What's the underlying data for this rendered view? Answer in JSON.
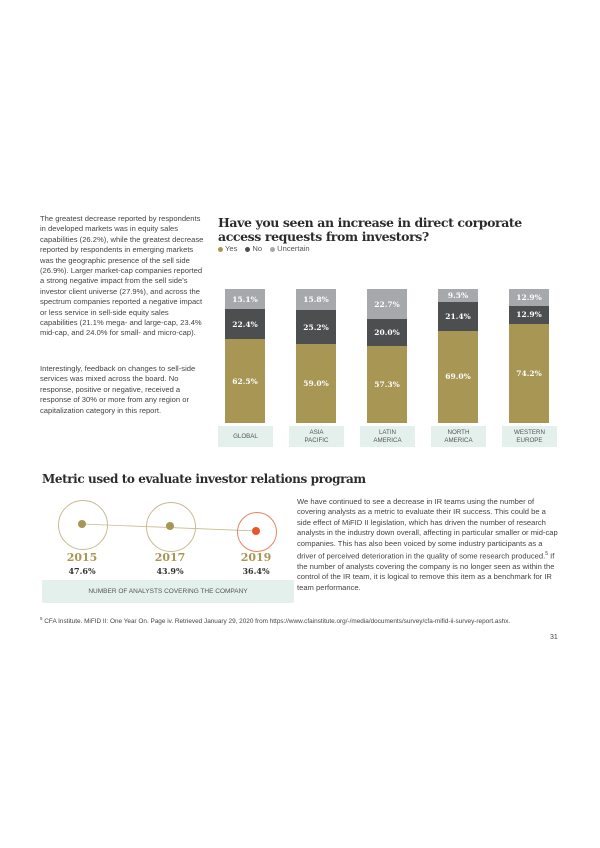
{
  "left_text": {
    "para1": "The greatest decrease reported by respondents in developed markets was in equity sales capabilities (26.2%), while the greatest decrease reported by respondents in emerging markets was the geographic presence of the sell side (26.9%). Larger market-cap companies reported a strong negative impact from the sell side's investor client universe (27.9%), and across the spectrum companies reported a negative impact or less service in sell-side equity sales capabilities (21.1% mega- and large-cap, 23.4% mid-cap, and 24.0% for small- and micro-cap).",
    "para2": "Interestingly, feedback on changes to sell-side services was mixed across the board. No response, positive or negative, received a response of 30% or more from any region or capitalization category in this report."
  },
  "chart_data": {
    "type": "bar",
    "stacked": true,
    "title": "Have you seen an increase in direct corporate access requests from investors?",
    "legend_position": "top-left",
    "categories": [
      "GLOBAL",
      "ASIA PACIFIC",
      "LATIN AMERICA",
      "NORTH AMERICA",
      "WESTERN EUROPE"
    ],
    "series": [
      {
        "name": "Yes",
        "color": "#a89654",
        "values": [
          62.5,
          59.0,
          57.3,
          69.0,
          74.2
        ],
        "labels": [
          "62.5%",
          "59.0%",
          "57.3%",
          "69.0%",
          "74.2%"
        ]
      },
      {
        "name": "No",
        "color": "#4d4e50",
        "values": [
          22.4,
          25.2,
          20.0,
          21.4,
          12.9
        ],
        "labels": [
          "22.4%",
          "25.2%",
          "20.0%",
          "21.4%",
          "12.9%"
        ]
      },
      {
        "name": "Uncertain",
        "color": "#a7a8ab",
        "values": [
          15.1,
          15.8,
          22.7,
          9.5,
          12.9
        ],
        "labels": [
          "15.1%",
          "15.8%",
          "22.7%",
          "9.5%",
          "12.9%"
        ]
      }
    ],
    "category_lines": [
      [
        "GLOBAL"
      ],
      [
        "ASIA",
        "PACIFIC"
      ],
      [
        "LATIN",
        "AMERICA"
      ],
      [
        "NORTH",
        "AMERICA"
      ],
      [
        "WESTERN",
        "EUROPE"
      ]
    ]
  },
  "metric": {
    "title": "Metric used to evaluate investor relations program",
    "points": [
      {
        "year": "2015",
        "value": "47.6%",
        "color": "#a89654"
      },
      {
        "year": "2017",
        "value": "43.9%",
        "color": "#a89654"
      },
      {
        "year": "2019",
        "value": "36.4%",
        "color": "#e8572a"
      }
    ],
    "label": "NUMBER OF ANALYSTS COVERING THE COMPANY",
    "paragraph_a": "We have continued to see a decrease in IR teams using the number of covering analysts as a metric to evaluate their IR success. This could be a side effect of MiFID II legislation, which has driven the number of research analysts in the industry down overall, affecting in particular smaller or mid-cap companies. This has also been voiced by some industry participants as a driver of perceived deterioration in the quality of some research produced.",
    "footnote_ref": "5",
    "paragraph_b": " If the number of analysts covering the company is no longer seen as within the control of the IR team, it is logical to remove this item as a benchmark for IR team performance."
  },
  "footnote": {
    "number": "5",
    "text": " CFA Institute. MiFID II: One Year On. Page iv. Retrieved January 29, 2020 from https://www.cfainstitute.org/-/media/documents/survey/cfa-mifid-ii-survey-report.ashx."
  },
  "page_number": "31"
}
